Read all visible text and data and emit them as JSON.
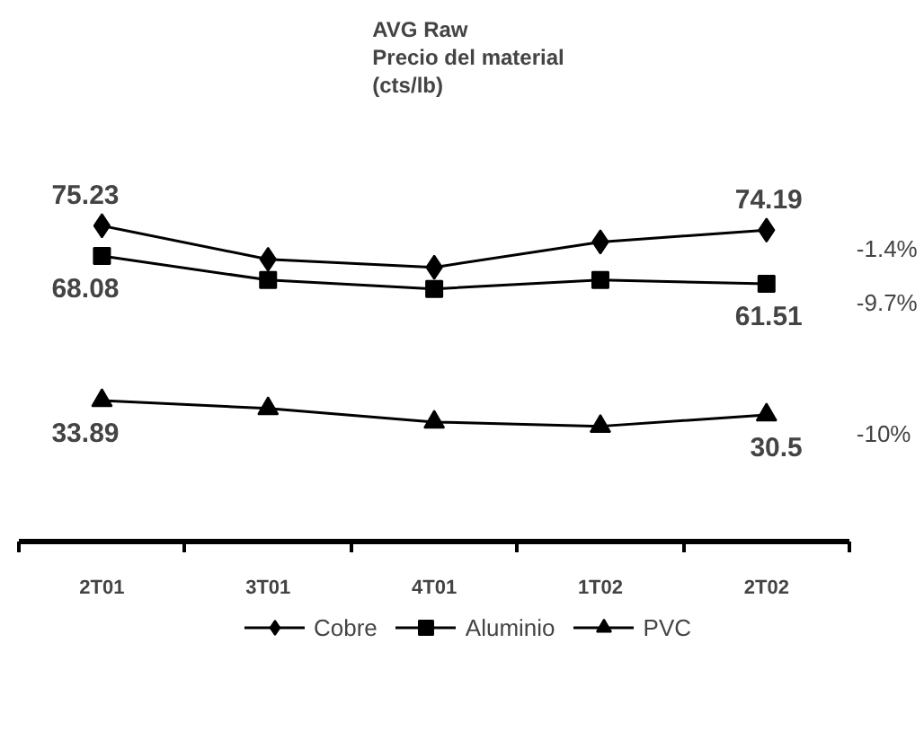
{
  "chart_data": {
    "type": "line",
    "title": "AVG  Raw\nPrecio del material\n(cts/lb)",
    "categories": [
      "2T01",
      "3T01",
      "4T01",
      "1T02",
      "2T02"
    ],
    "tick_labels": "x",
    "legend": "bottom",
    "series": [
      {
        "name": "Cobre",
        "color": "#000000",
        "marker": "diamond",
        "values": [
          75.23,
          67.3,
          65.4,
          71.4,
          74.19
        ],
        "value_labels": [
          "75.23",
          null,
          null,
          null,
          "74.19"
        ]
      },
      {
        "name": "Aluminio",
        "color": "#000000",
        "marker": "square",
        "values": [
          68.08,
          62.4,
          60.3,
          62.4,
          61.51
        ],
        "value_labels": [
          "68.08",
          null,
          null,
          null,
          "61.51"
        ]
      },
      {
        "name": "PVC",
        "color": "#000000",
        "marker": "triangle",
        "values": [
          33.89,
          32.0,
          28.8,
          27.8,
          30.5
        ],
        "value_labels": [
          "33.89",
          null,
          null,
          null,
          "30.5"
        ]
      }
    ],
    "annotations": [
      "-1.4%",
      "-9.7%",
      "-10%"
    ]
  }
}
